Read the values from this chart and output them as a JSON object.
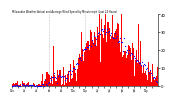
{
  "title": "Milwaukee Weather Actual and Average Wind Speed by Minute mph (Last 24 Hours)",
  "background_color": "#ffffff",
  "bar_color": "#ff0000",
  "dot_color": "#0000ff",
  "ymax": 40,
  "ymin": 0,
  "n_points": 144,
  "grid_color": "#bbbbbb",
  "yticks": [
    0,
    10,
    20,
    30,
    40
  ],
  "seed": 17,
  "n_gridlines": 2
}
